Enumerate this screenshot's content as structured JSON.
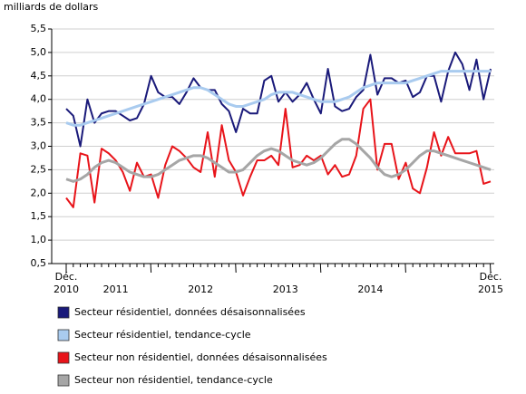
{
  "chart_data": {
    "type": "line",
    "y_label": "milliards de dollars",
    "categories": [
      "Déc. 2010",
      null,
      null,
      null,
      null,
      null,
      null,
      "2011",
      null,
      null,
      null,
      null,
      null,
      null,
      null,
      null,
      null,
      null,
      null,
      "2012",
      null,
      null,
      null,
      null,
      null,
      null,
      null,
      null,
      null,
      null,
      null,
      "2013",
      null,
      null,
      null,
      null,
      null,
      null,
      null,
      null,
      null,
      null,
      null,
      "2014",
      null,
      null,
      null,
      null,
      null,
      null,
      null,
      null,
      null,
      null,
      null,
      null,
      null,
      null,
      null,
      null,
      "Déc. 2015"
    ],
    "series": [
      {
        "name": "Secteur résidentiel, données désaisonnalisées",
        "color": "#1a1a7a",
        "width": 2,
        "values": [
          3.8,
          3.65,
          3.0,
          4.0,
          3.5,
          3.7,
          3.75,
          3.75,
          3.65,
          3.55,
          3.6,
          3.9,
          4.5,
          4.15,
          4.05,
          4.05,
          3.9,
          4.15,
          4.45,
          4.25,
          4.2,
          4.2,
          3.9,
          3.75,
          3.3,
          3.8,
          3.7,
          3.7,
          4.4,
          4.5,
          3.95,
          4.15,
          3.95,
          4.1,
          4.35,
          4.0,
          3.7,
          4.65,
          3.85,
          3.75,
          3.8,
          4.05,
          4.2,
          4.95,
          4.1,
          4.45,
          4.45,
          4.35,
          4.4,
          4.05,
          4.15,
          4.5,
          4.5,
          3.95,
          4.6,
          5.0,
          4.75,
          4.2,
          4.85,
          4.0,
          4.65
        ]
      },
      {
        "name": "Secteur résidentiel, tendance-cycle",
        "color": "#a9cbef",
        "width": 3,
        "values": [
          3.5,
          3.45,
          3.45,
          3.5,
          3.55,
          3.6,
          3.65,
          3.7,
          3.75,
          3.8,
          3.85,
          3.9,
          3.95,
          4.0,
          4.05,
          4.1,
          4.15,
          4.2,
          4.25,
          4.25,
          4.2,
          4.1,
          4.0,
          3.9,
          3.85,
          3.85,
          3.9,
          3.95,
          4.0,
          4.1,
          4.15,
          4.15,
          4.15,
          4.1,
          4.05,
          4.0,
          3.95,
          3.95,
          3.95,
          4.0,
          4.05,
          4.15,
          4.25,
          4.3,
          4.35,
          4.35,
          4.35,
          4.35,
          4.35,
          4.4,
          4.45,
          4.5,
          4.55,
          4.6,
          4.6,
          4.6,
          4.6,
          4.6,
          4.6,
          4.6,
          4.6
        ]
      },
      {
        "name": "Secteur non résidentiel, données désaisonnalisées",
        "color": "#e8141a",
        "width": 2,
        "values": [
          1.9,
          1.7,
          2.85,
          2.8,
          1.8,
          2.95,
          2.85,
          2.7,
          2.45,
          2.05,
          2.65,
          2.35,
          2.4,
          1.9,
          2.6,
          3.0,
          2.9,
          2.75,
          2.55,
          2.45,
          3.3,
          2.35,
          3.45,
          2.7,
          2.45,
          1.95,
          2.35,
          2.7,
          2.7,
          2.8,
          2.6,
          3.8,
          2.55,
          2.6,
          2.8,
          2.7,
          2.8,
          2.4,
          2.6,
          2.35,
          2.4,
          2.8,
          3.8,
          4.0,
          2.5,
          3.05,
          3.05,
          2.3,
          2.65,
          2.1,
          2.0,
          2.55,
          3.3,
          2.8,
          3.2,
          2.85,
          2.85,
          2.85,
          2.9,
          2.2,
          2.25
        ]
      },
      {
        "name": "Secteur non résidentiel, tendance-cycle",
        "color": "#a6a6a6",
        "width": 3,
        "values": [
          2.3,
          2.25,
          2.3,
          2.4,
          2.55,
          2.65,
          2.7,
          2.65,
          2.55,
          2.45,
          2.4,
          2.35,
          2.35,
          2.4,
          2.5,
          2.6,
          2.7,
          2.75,
          2.8,
          2.8,
          2.75,
          2.65,
          2.55,
          2.45,
          2.45,
          2.5,
          2.65,
          2.8,
          2.9,
          2.95,
          2.9,
          2.8,
          2.7,
          2.65,
          2.6,
          2.65,
          2.75,
          2.9,
          3.05,
          3.15,
          3.15,
          3.05,
          2.9,
          2.75,
          2.55,
          2.4,
          2.35,
          2.4,
          2.5,
          2.65,
          2.8,
          2.9,
          2.9,
          2.85,
          2.8,
          2.75,
          2.7,
          2.65,
          2.6,
          2.55,
          2.5
        ]
      }
    ],
    "ylim": [
      0.5,
      5.5
    ],
    "yticks": [
      {
        "value": 0.5,
        "label": "0,5"
      },
      {
        "value": 1,
        "label": "1,0"
      },
      {
        "value": 1.5,
        "label": "1,5"
      },
      {
        "value": 2,
        "label": "2,0"
      },
      {
        "value": 2.5,
        "label": "2,5"
      },
      {
        "value": 3,
        "label": "3,0"
      },
      {
        "value": 3.5,
        "label": "3,5"
      },
      {
        "value": 4,
        "label": "4,0"
      },
      {
        "value": 4.5,
        "label": "4,5"
      },
      {
        "value": 5,
        "label": "5,0"
      },
      {
        "value": 5.5,
        "label": "5,5"
      }
    ],
    "grid": true
  }
}
